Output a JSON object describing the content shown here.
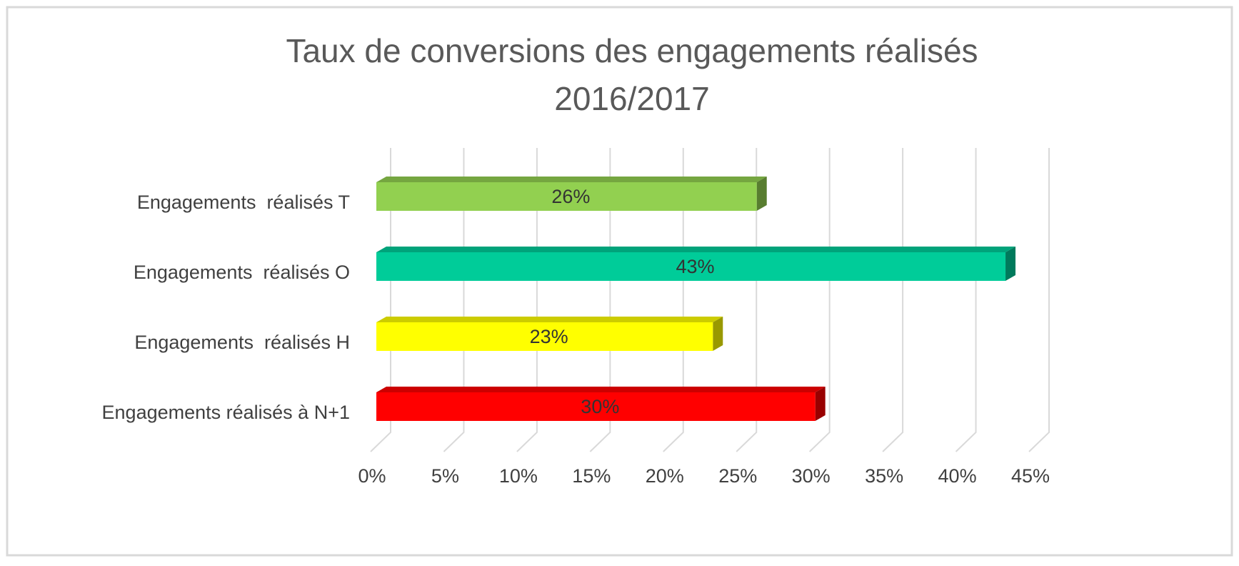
{
  "chart_data": {
    "type": "bar",
    "orientation": "horizontal",
    "title": [
      "Taux de conversions des engagements réalisés",
      "2016/2017"
    ],
    "categories": [
      "Engagements  réalisés T",
      "Engagements  réalisés O",
      "Engagements  réalisés H",
      "Engagements réalisés à N+1"
    ],
    "values": [
      26,
      43,
      23,
      30
    ],
    "value_labels": [
      "26%",
      "43%",
      "23%",
      "30%"
    ],
    "colors": [
      "#92d050",
      "#00cc99",
      "#ffff00",
      "#ff0000"
    ],
    "xlim": [
      0,
      45
    ],
    "xticks": [
      {
        "value": 0,
        "label": "0%"
      },
      {
        "value": 5,
        "label": "5%"
      },
      {
        "value": 10,
        "label": "10%"
      },
      {
        "value": 15,
        "label": "15%"
      },
      {
        "value": 20,
        "label": "20%"
      },
      {
        "value": 25,
        "label": "25%"
      },
      {
        "value": 30,
        "label": "30%"
      },
      {
        "value": 35,
        "label": "35%"
      },
      {
        "value": 40,
        "label": "40%"
      },
      {
        "value": 45,
        "label": "45%"
      }
    ],
    "grid": true
  }
}
